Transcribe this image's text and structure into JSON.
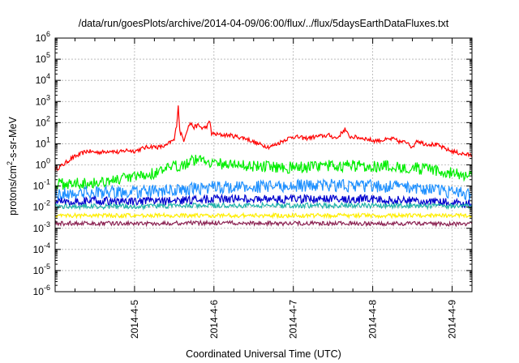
{
  "chart_data": {
    "type": "line",
    "title": "/data/run/goesPlots/archive/2014-04-09/06:00/flux/../flux/5daysEarthDataFluxes.txt",
    "xlabel": "Coordinated Universal Time (UTC)",
    "ylabel": "protons/cm²-s-sr-MeV",
    "ylabel_parts": {
      "before": "protons/cm",
      "sup": "2",
      "after": "-s-sr-MeV"
    },
    "yscale": "log",
    "ylim_exponents": [
      -6,
      6
    ],
    "y_ticks": [
      {
        "base": "10",
        "exp": "-6"
      },
      {
        "base": "10",
        "exp": "-5"
      },
      {
        "base": "10",
        "exp": "-4"
      },
      {
        "base": "10",
        "exp": "-3"
      },
      {
        "base": "10",
        "exp": "-2"
      },
      {
        "base": "10",
        "exp": "-1"
      },
      {
        "base": "10",
        "exp": "0"
      },
      {
        "base": "10",
        "exp": "1"
      },
      {
        "base": "10",
        "exp": "2"
      },
      {
        "base": "10",
        "exp": "3"
      },
      {
        "base": "10",
        "exp": "4"
      },
      {
        "base": "10",
        "exp": "5"
      },
      {
        "base": "10",
        "exp": "6"
      }
    ],
    "x_range_days": [
      4.0,
      9.25
    ],
    "x_ticks": [
      {
        "label": "2014-4-5",
        "day": 5
      },
      {
        "label": "2014-4-6",
        "day": 6
      },
      {
        "label": "2014-4-7",
        "day": 7
      },
      {
        "label": "2014-4-8",
        "day": 8
      },
      {
        "label": "2014-4-9",
        "day": 9
      }
    ],
    "grid": true,
    "series": [
      {
        "color": "#ff0000",
        "values": [
          [
            4.0,
            0.6
          ],
          [
            4.1,
            1.0
          ],
          [
            4.2,
            2.0
          ],
          [
            4.3,
            3.0
          ],
          [
            4.4,
            4.5
          ],
          [
            4.5,
            4.0
          ],
          [
            4.6,
            4.0
          ],
          [
            4.7,
            4.8
          ],
          [
            4.8,
            3.8
          ],
          [
            4.9,
            5.0
          ],
          [
            5.0,
            4.5
          ],
          [
            5.1,
            6.0
          ],
          [
            5.2,
            7.5
          ],
          [
            5.3,
            6.8
          ],
          [
            5.4,
            8.0
          ],
          [
            5.45,
            12
          ],
          [
            5.5,
            15
          ],
          [
            5.53,
            80
          ],
          [
            5.55,
            700
          ],
          [
            5.57,
            40
          ],
          [
            5.62,
            15
          ],
          [
            5.66,
            45
          ],
          [
            5.7,
            95
          ],
          [
            5.75,
            60
          ],
          [
            5.8,
            75
          ],
          [
            5.85,
            55
          ],
          [
            5.9,
            60
          ],
          [
            5.95,
            110
          ],
          [
            5.97,
            30
          ],
          [
            6.05,
            27
          ],
          [
            6.2,
            25
          ],
          [
            6.4,
            18
          ],
          [
            6.55,
            10
          ],
          [
            6.7,
            7
          ],
          [
            6.8,
            10
          ],
          [
            6.9,
            16
          ],
          [
            7.0,
            22
          ],
          [
            7.15,
            18
          ],
          [
            7.3,
            22
          ],
          [
            7.45,
            25
          ],
          [
            7.55,
            18
          ],
          [
            7.6,
            30
          ],
          [
            7.65,
            50
          ],
          [
            7.7,
            22
          ],
          [
            7.8,
            20
          ],
          [
            7.9,
            18
          ],
          [
            8.0,
            14
          ],
          [
            8.15,
            15
          ],
          [
            8.25,
            17
          ],
          [
            8.35,
            12
          ],
          [
            8.45,
            12
          ],
          [
            8.5,
            6
          ],
          [
            8.55,
            15
          ],
          [
            8.65,
            10
          ],
          [
            8.8,
            9
          ],
          [
            8.95,
            5
          ],
          [
            9.1,
            3.5
          ],
          [
            9.25,
            2.8
          ]
        ]
      },
      {
        "color": "#00ee00",
        "values": [
          [
            4.0,
            0.12
          ],
          [
            4.5,
            0.15
          ],
          [
            5.0,
            0.25
          ],
          [
            5.3,
            0.45
          ],
          [
            5.5,
            0.8
          ],
          [
            5.7,
            1.5
          ],
          [
            5.85,
            2.0
          ],
          [
            6.0,
            1.2
          ],
          [
            6.5,
            0.9
          ],
          [
            7.0,
            0.75
          ],
          [
            7.5,
            0.9
          ],
          [
            8.0,
            0.9
          ],
          [
            8.5,
            0.75
          ],
          [
            9.0,
            0.4
          ],
          [
            9.25,
            0.3
          ]
        ]
      },
      {
        "color": "#1e90ff",
        "values": [
          [
            4.0,
            0.04
          ],
          [
            4.5,
            0.05
          ],
          [
            5.0,
            0.05
          ],
          [
            5.5,
            0.06
          ],
          [
            6.0,
            0.09
          ],
          [
            6.5,
            0.09
          ],
          [
            7.0,
            0.1
          ],
          [
            7.5,
            0.11
          ],
          [
            8.0,
            0.1
          ],
          [
            8.5,
            0.09
          ],
          [
            9.0,
            0.05
          ],
          [
            9.25,
            0.04
          ]
        ]
      },
      {
        "color": "#0000cd",
        "values": [
          [
            4.0,
            0.018
          ],
          [
            4.5,
            0.02
          ],
          [
            5.0,
            0.018
          ],
          [
            5.5,
            0.02
          ],
          [
            6.0,
            0.025
          ],
          [
            6.5,
            0.025
          ],
          [
            7.0,
            0.024
          ],
          [
            7.5,
            0.025
          ],
          [
            8.0,
            0.024
          ],
          [
            8.5,
            0.02
          ],
          [
            9.0,
            0.016
          ],
          [
            9.25,
            0.015
          ]
        ]
      },
      {
        "color": "#20b2aa",
        "values": [
          [
            4.0,
            0.011
          ],
          [
            5.0,
            0.011
          ],
          [
            6.0,
            0.012
          ],
          [
            7.0,
            0.012
          ],
          [
            8.0,
            0.012
          ],
          [
            9.0,
            0.011
          ],
          [
            9.25,
            0.011
          ]
        ]
      },
      {
        "color": "#ffee00",
        "values": [
          [
            4.0,
            0.004
          ],
          [
            5.0,
            0.004
          ],
          [
            6.0,
            0.004
          ],
          [
            7.0,
            0.004
          ],
          [
            8.0,
            0.004
          ],
          [
            9.0,
            0.004
          ],
          [
            9.25,
            0.004
          ]
        ]
      },
      {
        "color": "#8b2252",
        "values": [
          [
            4.0,
            0.0017
          ],
          [
            5.0,
            0.0017
          ],
          [
            6.0,
            0.0018
          ],
          [
            7.0,
            0.0017
          ],
          [
            8.0,
            0.0017
          ],
          [
            9.0,
            0.0016
          ],
          [
            9.25,
            0.0016
          ]
        ]
      }
    ]
  }
}
